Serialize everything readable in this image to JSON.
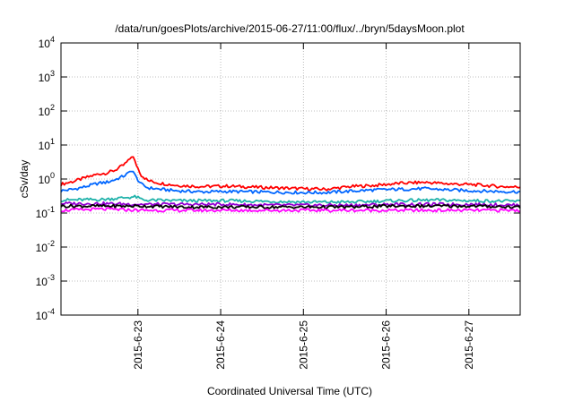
{
  "chart_data": {
    "type": "line",
    "title": "/data/run/goesPlots/archive/2015-06-27/11:00/flux/../bryn/5daysMoon.plot",
    "xlabel": "Coordinated Universal Time (UTC)",
    "ylabel": "cSv/day",
    "yscale": "log",
    "ylim": [
      0.0001,
      10000
    ],
    "xlim": [
      0,
      5.55
    ],
    "grid": true,
    "y_ticks": [
      {
        "value": 0.0001,
        "base": "10",
        "exp": "-4"
      },
      {
        "value": 0.001,
        "base": "10",
        "exp": "-3"
      },
      {
        "value": 0.01,
        "base": "10",
        "exp": "-2"
      },
      {
        "value": 0.1,
        "base": "10",
        "exp": "-1"
      },
      {
        "value": 1,
        "base": "10",
        "exp": "0"
      },
      {
        "value": 10,
        "base": "10",
        "exp": "1"
      },
      {
        "value": 100,
        "base": "10",
        "exp": "2"
      },
      {
        "value": 1000,
        "base": "10",
        "exp": "3"
      },
      {
        "value": 10000,
        "base": "10",
        "exp": "4"
      }
    ],
    "x_ticks": [
      {
        "value": 0.93,
        "label": "2015-6-23"
      },
      {
        "value": 1.93,
        "label": "2015-6-24"
      },
      {
        "value": 2.93,
        "label": "2015-6-25"
      },
      {
        "value": 3.93,
        "label": "2015-6-26"
      },
      {
        "value": 4.93,
        "label": "2015-6-27"
      }
    ],
    "series": [
      {
        "color": "#ff0000",
        "x": [
          0,
          0.15,
          0.3,
          0.45,
          0.55,
          0.65,
          0.75,
          0.82,
          0.86,
          0.9,
          0.97,
          1.05,
          1.2,
          1.4,
          1.7,
          2.0,
          2.3,
          2.6,
          2.9,
          3.2,
          3.5,
          3.8,
          4.1,
          4.4,
          4.7,
          5.0,
          5.3,
          5.55
        ],
        "y": [
          0.7,
          0.85,
          1.1,
          1.4,
          1.5,
          1.8,
          2.5,
          3.5,
          5.0,
          3.0,
          1.3,
          0.9,
          0.75,
          0.65,
          0.6,
          0.62,
          0.58,
          0.55,
          0.52,
          0.5,
          0.6,
          0.65,
          0.75,
          0.8,
          0.72,
          0.68,
          0.6,
          0.58
        ]
      },
      {
        "color": "#0066ff",
        "x": [
          0,
          0.15,
          0.3,
          0.45,
          0.55,
          0.65,
          0.75,
          0.82,
          0.86,
          0.9,
          0.97,
          1.05,
          1.2,
          1.4,
          1.7,
          2.0,
          2.3,
          2.6,
          2.9,
          3.2,
          3.5,
          3.8,
          4.1,
          4.4,
          4.7,
          5.0,
          5.3,
          5.55
        ],
        "y": [
          0.45,
          0.5,
          0.6,
          0.75,
          0.8,
          0.95,
          1.2,
          1.5,
          1.9,
          1.2,
          0.7,
          0.55,
          0.5,
          0.45,
          0.42,
          0.43,
          0.42,
          0.41,
          0.4,
          0.4,
          0.44,
          0.48,
          0.5,
          0.52,
          0.48,
          0.45,
          0.43,
          0.42
        ]
      },
      {
        "color": "#20b2aa",
        "x": [
          0,
          0.5,
          0.9,
          1.0,
          1.5,
          2.0,
          2.5,
          3.0,
          3.5,
          4.0,
          4.5,
          5.0,
          5.55
        ],
        "y": [
          0.24,
          0.25,
          0.3,
          0.24,
          0.23,
          0.23,
          0.22,
          0.21,
          0.21,
          0.23,
          0.24,
          0.23,
          0.22
        ]
      },
      {
        "color": "#9400d3",
        "x": [
          0,
          0.5,
          1.0,
          1.5,
          2.0,
          2.5,
          3.0,
          3.5,
          4.0,
          4.5,
          5.0,
          5.55
        ],
        "y": [
          0.19,
          0.19,
          0.18,
          0.18,
          0.18,
          0.17,
          0.17,
          0.17,
          0.18,
          0.18,
          0.18,
          0.17
        ]
      },
      {
        "color": "#000000",
        "x": [
          0,
          0.5,
          1.0,
          1.5,
          2.0,
          2.5,
          3.0,
          3.5,
          4.0,
          4.5,
          5.0,
          5.55
        ],
        "y": [
          0.16,
          0.16,
          0.16,
          0.15,
          0.15,
          0.15,
          0.15,
          0.15,
          0.16,
          0.16,
          0.16,
          0.15
        ]
      },
      {
        "color": "#ff00ff",
        "x": [
          0,
          0.5,
          1.0,
          1.5,
          2.0,
          2.5,
          3.0,
          3.5,
          4.0,
          4.5,
          5.0,
          5.55
        ],
        "y": [
          0.12,
          0.13,
          0.12,
          0.12,
          0.12,
          0.12,
          0.12,
          0.12,
          0.12,
          0.12,
          0.12,
          0.12
        ]
      }
    ]
  }
}
